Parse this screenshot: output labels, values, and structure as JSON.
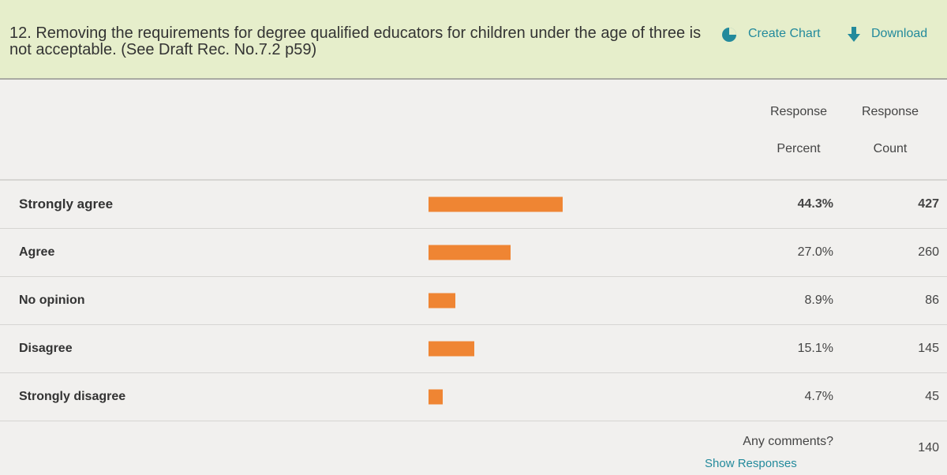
{
  "question": {
    "title": "12. Removing the requirements for degree qualified educators for children under the age of three is not acceptable. (See Draft Rec. No.7.2 p59)",
    "actions": [
      "Create Chart",
      "Download"
    ]
  },
  "table": {
    "columns": [
      "Response Percent",
      "Response Count"
    ],
    "rows": [
      {
        "label": "Strongly agree",
        "percent": 44.3,
        "percent_label": "44.3%",
        "count": 427
      },
      {
        "label": "Agree",
        "percent": 27.0,
        "percent_label": "27.0%",
        "count": 260
      },
      {
        "label": "No opinion",
        "percent": 8.9,
        "percent_label": "8.9%",
        "count": 86
      },
      {
        "label": "Disagree",
        "percent": 15.1,
        "percent_label": "15.1%",
        "count": 145
      },
      {
        "label": "Strongly disagree",
        "percent": 4.7,
        "percent_label": "4.7%",
        "count": 45
      }
    ],
    "bar_color": "#ef8533",
    "comments": {
      "prompt": "Any comments?",
      "link": "Show Responses",
      "count": 140
    }
  }
}
